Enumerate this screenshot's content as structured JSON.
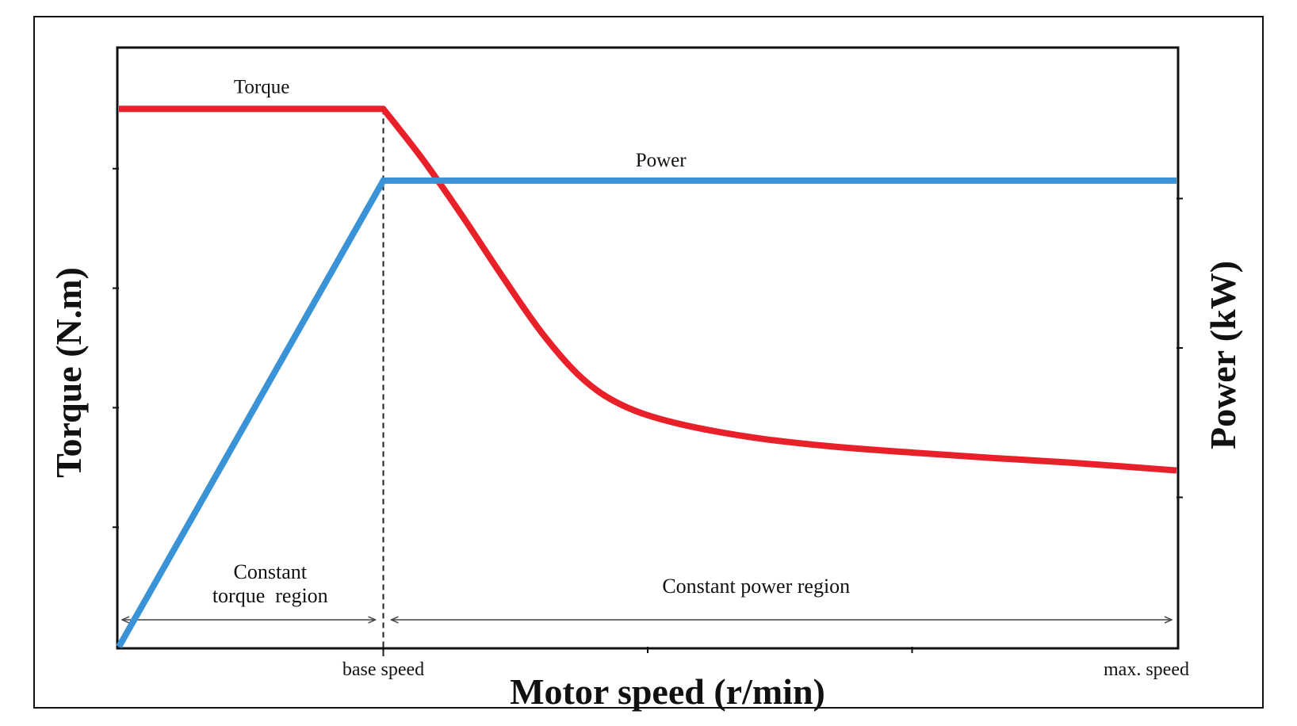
{
  "chart_data": {
    "type": "line",
    "title": "",
    "xlabel": "Motor speed (r/min)",
    "ylabel_left": "Torque (N.m)",
    "ylabel_right": "Power (kW)",
    "x_tick_labels": [
      {
        "value": 1.0,
        "label": "base speed"
      },
      {
        "value": 4.0,
        "label": "max. speed"
      }
    ],
    "xlim": [
      0,
      4
    ],
    "ylim": [
      0,
      100
    ],
    "grid": false,
    "series": [
      {
        "name": "Torque",
        "color": "#e8202a",
        "x": [
          0,
          1.0,
          1.15,
          1.3,
          1.45,
          1.6,
          1.75,
          1.9,
          2.1,
          2.4,
          2.7,
          3.0,
          3.3,
          3.6,
          4.0
        ],
        "values": [
          90,
          90,
          81.5,
          72,
          62,
          52.5,
          45,
          40.5,
          37.5,
          35,
          33.5,
          32.5,
          31.6,
          30.8,
          29.5
        ]
      },
      {
        "name": "Power",
        "color": "#3a93d6",
        "x": [
          0,
          1.0,
          4.0
        ],
        "values": [
          0,
          78,
          78
        ]
      }
    ],
    "annotations": [
      {
        "text_lines": [
          "Constant",
          "torque  region"
        ],
        "x_range": [
          0,
          1.0
        ]
      },
      {
        "text": "Constant power region",
        "x_range": [
          1.0,
          4.0
        ]
      }
    ],
    "divider_x": 1.0
  }
}
